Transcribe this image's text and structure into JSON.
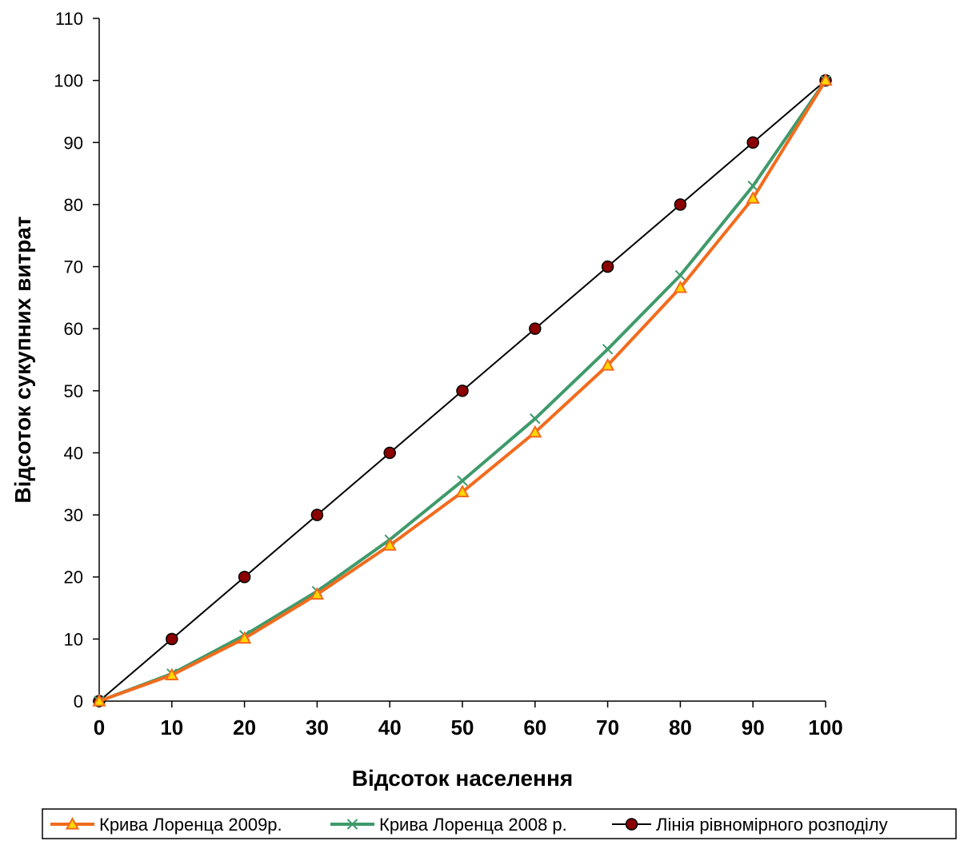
{
  "chart_data": {
    "type": "line",
    "xlabel": "Відсоток населення",
    "ylabel": "Відсоток сукупних витрат",
    "xlim": [
      0,
      100
    ],
    "ylim": [
      0,
      110
    ],
    "x_ticks": [
      "0",
      "10",
      "20",
      "30",
      "40",
      "50",
      "60",
      "70",
      "80",
      "90",
      "100"
    ],
    "y_ticks": [
      "0",
      "10",
      "20",
      "30",
      "40",
      "50",
      "60",
      "70",
      "80",
      "90",
      "100",
      "110"
    ],
    "grid": false,
    "legend_position": "bottom",
    "x": [
      0,
      10,
      20,
      30,
      40,
      50,
      60,
      70,
      80,
      90,
      100
    ],
    "series": [
      {
        "name": "Крива Лоренца 2009р.",
        "values": [
          0,
          4.2,
          10.1,
          17.2,
          25.1,
          33.7,
          43.3,
          54.1,
          66.6,
          81.0,
          100
        ],
        "color": "#f26b1d",
        "marker": "triangle",
        "marker_fill": "#ffd700"
      },
      {
        "name": "Крива Лоренца 2008 р.",
        "values": [
          0,
          4.4,
          10.6,
          17.7,
          26.0,
          35.5,
          45.5,
          56.7,
          68.6,
          83.0,
          100
        ],
        "color": "#3f9a6b",
        "marker": "x"
      },
      {
        "name": "Лінія рівномірного розподілу",
        "values": [
          0,
          10,
          20,
          30,
          40,
          50,
          60,
          70,
          80,
          90,
          100
        ],
        "color": "#000000",
        "marker": "circle",
        "marker_fill": "#8b0000"
      }
    ]
  }
}
